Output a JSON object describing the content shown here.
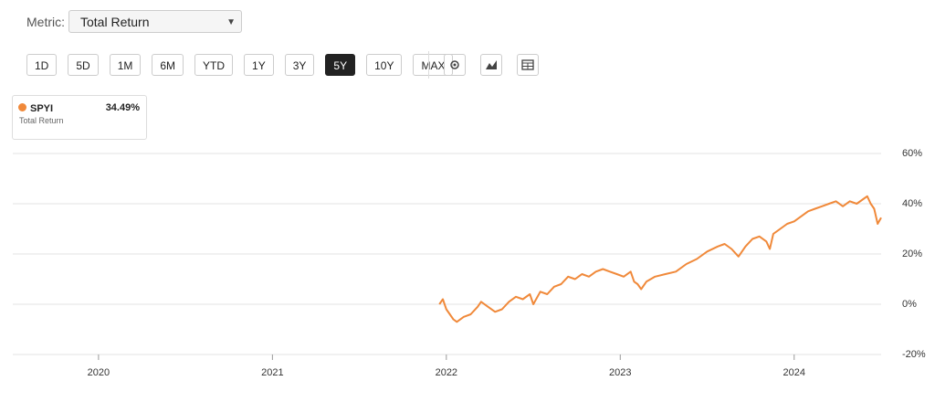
{
  "ui": {
    "metric_label": "Metric:",
    "metric_value": "Total Return",
    "ranges": [
      "1D",
      "5D",
      "1M",
      "6M",
      "YTD",
      "1Y",
      "3Y",
      "5Y",
      "10Y",
      "MAX"
    ],
    "active_range": "5Y",
    "legend": {
      "value": "34.49%",
      "metric": "Total Return"
    }
  },
  "chart_data": {
    "type": "line",
    "xlim": [
      2019.507,
      2024.5
    ],
    "xticks": [
      2020,
      2021,
      2022,
      2023,
      2024
    ],
    "ylim": [
      -20,
      60
    ],
    "yticks": [
      {
        "value": -20,
        "label": "-20%"
      },
      {
        "value": 0,
        "label": "0%"
      },
      {
        "value": 20,
        "label": "20%"
      },
      {
        "value": 40,
        "label": "40%"
      },
      {
        "value": 60,
        "label": "60%"
      }
    ],
    "grid": true,
    "series": [
      {
        "name": "SPYI",
        "color": "#f0893a",
        "x": [
          2021.96,
          2021.98,
          2022.0,
          2022.04,
          2022.06,
          2022.1,
          2022.14,
          2022.18,
          2022.2,
          2022.24,
          2022.28,
          2022.32,
          2022.36,
          2022.4,
          2022.44,
          2022.48,
          2022.5,
          2022.54,
          2022.58,
          2022.62,
          2022.66,
          2022.7,
          2022.74,
          2022.78,
          2022.82,
          2022.86,
          2022.9,
          2022.94,
          2022.98,
          2023.02,
          2023.06,
          2023.08,
          2023.1,
          2023.12,
          2023.15,
          2023.2,
          2023.26,
          2023.32,
          2023.38,
          2023.44,
          2023.5,
          2023.56,
          2023.6,
          2023.64,
          2023.68,
          2023.72,
          2023.76,
          2023.8,
          2023.84,
          2023.86,
          2023.88,
          2023.92,
          2023.96,
          2024.0,
          2024.04,
          2024.08,
          2024.12,
          2024.16,
          2024.2,
          2024.24,
          2024.28,
          2024.32,
          2024.36,
          2024.4,
          2024.42,
          2024.44,
          2024.46,
          2024.48,
          2024.5
        ],
        "values": [
          0,
          2,
          -2,
          -6,
          -7,
          -5,
          -4,
          -1,
          1,
          -1,
          -3,
          -2,
          1,
          3,
          2,
          4,
          0,
          5,
          4,
          7,
          8,
          11,
          10,
          12,
          11,
          13,
          14,
          13,
          12,
          11,
          13,
          9,
          8,
          6,
          9,
          11,
          12,
          13,
          16,
          18,
          21,
          23,
          24,
          22,
          19,
          23,
          26,
          27,
          25,
          22,
          28,
          30,
          32,
          33,
          35,
          37,
          38,
          39,
          40,
          41,
          39,
          41,
          40,
          42,
          43,
          40,
          38,
          32,
          34.49
        ]
      }
    ]
  }
}
